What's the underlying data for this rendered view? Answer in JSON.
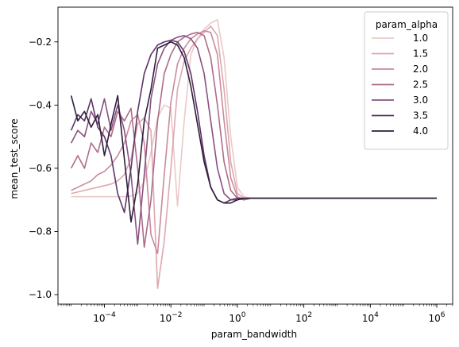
{
  "chart_data": {
    "type": "line",
    "xlabel": "param_bandwidth",
    "ylabel": "mean_test_score",
    "x_scale": "log",
    "xlim": [
      4e-06,
      3000000.0
    ],
    "ylim": [
      -1.03,
      -0.09
    ],
    "xticks": [
      {
        "value": 0.0001,
        "base": "10",
        "exp": "−4"
      },
      {
        "value": 0.01,
        "base": "10",
        "exp": "−2"
      },
      {
        "value": 1,
        "base": "10",
        "exp": "0"
      },
      {
        "value": 100,
        "base": "10",
        "exp": "2"
      },
      {
        "value": 10000,
        "base": "10",
        "exp": "4"
      },
      {
        "value": 1000000,
        "base": "10",
        "exp": "6"
      }
    ],
    "yticks": [
      {
        "value": -1.0,
        "label": "−1.0"
      },
      {
        "value": -0.8,
        "label": "−0.8"
      },
      {
        "value": -0.6,
        "label": "−0.6"
      },
      {
        "value": -0.4,
        "label": "−0.4"
      },
      {
        "value": -0.2,
        "label": "−0.2"
      }
    ],
    "grid": false,
    "legend": {
      "title": "param_alpha",
      "placement": "top-right"
    },
    "series": [
      {
        "name": "1.0",
        "color": "#ebc9c7",
        "x": [
          1e-05,
          1.58e-05,
          2.51e-05,
          3.98e-05,
          6.31e-05,
          0.0001,
          0.000158,
          0.000251,
          0.000398,
          0.000631,
          0.001,
          0.00158,
          0.00251,
          0.00398,
          0.00631,
          0.01,
          0.0158,
          0.0251,
          0.0398,
          0.0631,
          0.1,
          0.158,
          0.251,
          0.398,
          0.631,
          1.0,
          1.58,
          2.51,
          3.98,
          6.31,
          10,
          100,
          1000,
          10000,
          100000,
          1000000
        ],
        "y": [
          -0.69,
          -0.69,
          -0.69,
          -0.69,
          -0.69,
          -0.69,
          -0.69,
          -0.69,
          -0.69,
          -0.688,
          -0.68,
          -0.64,
          -0.55,
          -0.44,
          -0.4,
          -0.41,
          -0.72,
          -0.45,
          -0.24,
          -0.19,
          -0.16,
          -0.14,
          -0.13,
          -0.25,
          -0.5,
          -0.66,
          -0.69,
          -0.695,
          -0.695,
          -0.695,
          -0.695,
          -0.695,
          -0.695,
          -0.695,
          -0.695,
          -0.695
        ]
      },
      {
        "name": "1.5",
        "color": "#dda8ae",
        "x": [
          1e-05,
          1.58e-05,
          2.51e-05,
          3.98e-05,
          6.31e-05,
          0.0001,
          0.000158,
          0.000251,
          0.000398,
          0.000631,
          0.001,
          0.00158,
          0.00251,
          0.00398,
          0.00631,
          0.01,
          0.0158,
          0.0251,
          0.0398,
          0.0631,
          0.1,
          0.158,
          0.251,
          0.398,
          0.631,
          1.0,
          1.58,
          2.51,
          3.98,
          6.31,
          10,
          100,
          1000,
          10000,
          100000,
          1000000
        ],
        "y": [
          -0.68,
          -0.675,
          -0.67,
          -0.665,
          -0.66,
          -0.655,
          -0.65,
          -0.64,
          -0.62,
          -0.57,
          -0.46,
          -0.44,
          -0.48,
          -0.98,
          -0.83,
          -0.6,
          -0.35,
          -0.26,
          -0.22,
          -0.19,
          -0.17,
          -0.15,
          -0.18,
          -0.35,
          -0.58,
          -0.68,
          -0.695,
          -0.695,
          -0.695,
          -0.695,
          -0.695,
          -0.695,
          -0.695,
          -0.695,
          -0.695,
          -0.695
        ]
      },
      {
        "name": "2.0",
        "color": "#c98a9c",
        "x": [
          1e-05,
          1.58e-05,
          2.51e-05,
          3.98e-05,
          6.31e-05,
          0.0001,
          0.000158,
          0.000251,
          0.000398,
          0.000631,
          0.001,
          0.00158,
          0.00251,
          0.00398,
          0.00631,
          0.01,
          0.0158,
          0.0251,
          0.0398,
          0.0631,
          0.1,
          0.158,
          0.251,
          0.398,
          0.631,
          1.0,
          1.58,
          2.51,
          3.98,
          6.31,
          10,
          100,
          1000,
          10000,
          100000,
          1000000
        ],
        "y": [
          -0.67,
          -0.66,
          -0.65,
          -0.64,
          -0.62,
          -0.61,
          -0.59,
          -0.56,
          -0.52,
          -0.45,
          -0.43,
          -0.52,
          -0.81,
          -0.87,
          -0.62,
          -0.39,
          -0.27,
          -0.22,
          -0.19,
          -0.175,
          -0.165,
          -0.17,
          -0.24,
          -0.45,
          -0.63,
          -0.69,
          -0.7,
          -0.695,
          -0.695,
          -0.695,
          -0.695,
          -0.695,
          -0.695,
          -0.695,
          -0.695,
          -0.695
        ]
      },
      {
        "name": "2.5",
        "color": "#ad6c8b",
        "x": [
          1e-05,
          1.58e-05,
          2.51e-05,
          3.98e-05,
          6.31e-05,
          0.0001,
          0.000158,
          0.000251,
          0.000398,
          0.000631,
          0.001,
          0.00158,
          0.00251,
          0.00398,
          0.00631,
          0.01,
          0.0158,
          0.0251,
          0.0398,
          0.0631,
          0.1,
          0.158,
          0.251,
          0.398,
          0.631,
          1.0,
          1.58,
          2.51,
          3.98,
          6.31,
          10,
          100,
          1000,
          10000,
          100000,
          1000000
        ],
        "y": [
          -0.6,
          -0.56,
          -0.6,
          -0.52,
          -0.55,
          -0.47,
          -0.5,
          -0.42,
          -0.45,
          -0.41,
          -0.6,
          -0.85,
          -0.7,
          -0.45,
          -0.3,
          -0.24,
          -0.2,
          -0.185,
          -0.175,
          -0.17,
          -0.18,
          -0.25,
          -0.4,
          -0.58,
          -0.67,
          -0.695,
          -0.7,
          -0.695,
          -0.695,
          -0.695,
          -0.695,
          -0.695,
          -0.695,
          -0.695,
          -0.695,
          -0.695
        ]
      },
      {
        "name": "3.0",
        "color": "#8a5080",
        "x": [
          1e-05,
          1.58e-05,
          2.51e-05,
          3.98e-05,
          6.31e-05,
          0.0001,
          0.000158,
          0.000251,
          0.000398,
          0.000631,
          0.001,
          0.00158,
          0.00251,
          0.00398,
          0.00631,
          0.01,
          0.0158,
          0.0251,
          0.0398,
          0.0631,
          0.1,
          0.158,
          0.251,
          0.398,
          0.631,
          1.0,
          1.58,
          2.51,
          3.98,
          6.31,
          10,
          100,
          1000,
          10000,
          100000,
          1000000
        ],
        "y": [
          -0.52,
          -0.48,
          -0.5,
          -0.42,
          -0.46,
          -0.38,
          -0.48,
          -0.4,
          -0.48,
          -0.62,
          -0.84,
          -0.62,
          -0.38,
          -0.27,
          -0.22,
          -0.195,
          -0.185,
          -0.18,
          -0.19,
          -0.22,
          -0.3,
          -0.45,
          -0.6,
          -0.68,
          -0.7,
          -0.7,
          -0.695,
          -0.695,
          -0.695,
          -0.695,
          -0.695,
          -0.695,
          -0.695,
          -0.695,
          -0.695,
          -0.695
        ]
      },
      {
        "name": "3.5",
        "color": "#5e3468",
        "x": [
          1e-05,
          1.58e-05,
          2.51e-05,
          3.98e-05,
          6.31e-05,
          0.0001,
          0.000158,
          0.000251,
          0.000398,
          0.000631,
          0.001,
          0.00158,
          0.00251,
          0.00398,
          0.00631,
          0.01,
          0.0158,
          0.0251,
          0.0398,
          0.0631,
          0.1,
          0.158,
          0.251,
          0.398,
          0.631,
          1.0,
          1.58,
          2.51,
          3.98,
          6.31,
          10,
          100,
          1000,
          10000,
          100000,
          1000000
        ],
        "y": [
          -0.48,
          -0.43,
          -0.45,
          -0.38,
          -0.47,
          -0.5,
          -0.56,
          -0.68,
          -0.74,
          -0.6,
          -0.42,
          -0.3,
          -0.24,
          -0.21,
          -0.2,
          -0.195,
          -0.2,
          -0.23,
          -0.3,
          -0.42,
          -0.56,
          -0.66,
          -0.7,
          -0.71,
          -0.7,
          -0.695,
          -0.695,
          -0.695,
          -0.695,
          -0.695,
          -0.695,
          -0.695,
          -0.695,
          -0.695,
          -0.695,
          -0.695
        ]
      },
      {
        "name": "4.0",
        "color": "#2d1e3e",
        "x": [
          1e-05,
          1.58e-05,
          2.51e-05,
          3.98e-05,
          6.31e-05,
          0.0001,
          0.000158,
          0.000251,
          0.000398,
          0.000631,
          0.001,
          0.00158,
          0.00251,
          0.00398,
          0.00631,
          0.01,
          0.0158,
          0.0251,
          0.0398,
          0.0631,
          0.1,
          0.158,
          0.251,
          0.398,
          0.631,
          1.0,
          1.58,
          2.51,
          3.98,
          6.31,
          10,
          100,
          1000,
          10000,
          100000,
          1000000
        ],
        "y": [
          -0.37,
          -0.45,
          -0.42,
          -0.47,
          -0.43,
          -0.56,
          -0.46,
          -0.37,
          -0.57,
          -0.77,
          -0.65,
          -0.45,
          -0.35,
          -0.22,
          -0.21,
          -0.2,
          -0.21,
          -0.25,
          -0.34,
          -0.46,
          -0.58,
          -0.66,
          -0.7,
          -0.71,
          -0.71,
          -0.7,
          -0.695,
          -0.695,
          -0.695,
          -0.695,
          -0.695,
          -0.695,
          -0.695,
          -0.695,
          -0.695,
          -0.695
        ]
      }
    ]
  }
}
